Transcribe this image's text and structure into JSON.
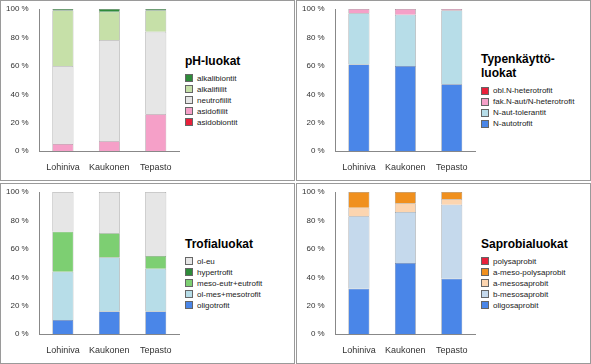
{
  "chart_data": [
    {
      "type": "bar",
      "title": "pH-luokat",
      "categories": [
        "Lohiniva",
        "Kaukonen",
        "Tepasto"
      ],
      "series": [
        {
          "name": "asidobiontit",
          "color": "#e8203a",
          "values": [
            0,
            0,
            0
          ]
        },
        {
          "name": "asidofiilit",
          "color": "#f5a0c8",
          "values": [
            5,
            7,
            26
          ]
        },
        {
          "name": "neutrofiilit",
          "color": "#e6e6e6",
          "values": [
            55,
            71,
            58
          ]
        },
        {
          "name": "alkalifiilit",
          "color": "#c6e0a8",
          "values": [
            39,
            20,
            15
          ]
        },
        {
          "name": "alkalibiontit",
          "color": "#2e8b3a",
          "values": [
            1,
            2,
            1
          ]
        }
      ],
      "ylim": [
        0,
        100
      ],
      "yticks": [
        {
          "value": 0,
          "label": "0 %"
        },
        {
          "value": 20,
          "label": "20 %"
        },
        {
          "value": 40,
          "label": "40 %"
        },
        {
          "value": 60,
          "label": "60 %"
        },
        {
          "value": 80,
          "label": "80 %"
        },
        {
          "value": 100,
          "label": "100 %"
        }
      ],
      "stacked": true,
      "grid": false,
      "legend": "right"
    },
    {
      "type": "bar",
      "title": "Typenkäyttö-luokat",
      "categories": [
        "Lohiniva",
        "Kaukonen",
        "Tepasto"
      ],
      "series": [
        {
          "name": "N-autotrofit",
          "color": "#4a86e8",
          "values": [
            61,
            60,
            47
          ]
        },
        {
          "name": "N-aut-tolerantit",
          "color": "#b7dde8",
          "values": [
            36,
            36,
            52
          ]
        },
        {
          "name": "fak.N-aut/N-heterotrofit",
          "color": "#f5a0c8",
          "values": [
            3,
            4,
            1
          ]
        },
        {
          "name": "obl.N-heterotrofit",
          "color": "#e8203a",
          "values": [
            0,
            0,
            0
          ]
        }
      ],
      "ylim": [
        0,
        100
      ],
      "yticks": [
        {
          "value": 0,
          "label": "0 %"
        },
        {
          "value": 20,
          "label": "20 %"
        },
        {
          "value": 40,
          "label": "40 %"
        },
        {
          "value": 60,
          "label": "60 %"
        },
        {
          "value": 80,
          "label": "80 %"
        },
        {
          "value": 100,
          "label": "100 %"
        }
      ],
      "stacked": true,
      "grid": false,
      "legend": "right"
    },
    {
      "type": "bar",
      "title": "Trofialuokat",
      "categories": [
        "Lohiniva",
        "Kaukonen",
        "Tepasto"
      ],
      "series": [
        {
          "name": "oligotrofit",
          "color": "#4a86e8",
          "values": [
            10,
            16,
            16
          ]
        },
        {
          "name": "ol-mes+mesotrofit",
          "color": "#b7dde8",
          "values": [
            34,
            38,
            30
          ]
        },
        {
          "name": "meso-eutr+eutrofit",
          "color": "#7dcf72",
          "values": [
            28,
            17,
            9
          ]
        },
        {
          "name": "hypertrofit",
          "color": "#2e8b3a",
          "values": [
            0,
            0,
            0
          ]
        },
        {
          "name": "ol-eu",
          "color": "#e6e6e6",
          "values": [
            28,
            29,
            45
          ]
        }
      ],
      "ylim": [
        0,
        100
      ],
      "yticks": [
        {
          "value": 0,
          "label": "0 %"
        },
        {
          "value": 20,
          "label": "20 %"
        },
        {
          "value": 40,
          "label": "40 %"
        },
        {
          "value": 60,
          "label": "60 %"
        },
        {
          "value": 80,
          "label": "80 %"
        },
        {
          "value": 100,
          "label": "100 %"
        }
      ],
      "stacked": true,
      "grid": false,
      "legend": "right"
    },
    {
      "type": "bar",
      "title": "Saprobialuokat",
      "categories": [
        "Lohiniva",
        "Kaukonen",
        "Tepasto"
      ],
      "series": [
        {
          "name": "oligosaprobit",
          "color": "#4a86e8",
          "values": [
            32,
            50,
            39
          ]
        },
        {
          "name": "b-mesosaprobit",
          "color": "#c5d9ec",
          "values": [
            51,
            36,
            52
          ]
        },
        {
          "name": "a-mesosaprobit",
          "color": "#fcd5b0",
          "values": [
            6,
            6,
            4
          ]
        },
        {
          "name": "a-meso-polysaprobit",
          "color": "#f0901e",
          "values": [
            11,
            8,
            5
          ]
        },
        {
          "name": "polysaprobit",
          "color": "#e8203a",
          "values": [
            0,
            0,
            0
          ]
        }
      ],
      "ylim": [
        0,
        100
      ],
      "yticks": [
        {
          "value": 0,
          "label": "0 %"
        },
        {
          "value": 20,
          "label": "20 %"
        },
        {
          "value": 40,
          "label": "40 %"
        },
        {
          "value": 60,
          "label": "60 %"
        },
        {
          "value": 80,
          "label": "80 %"
        },
        {
          "value": 100,
          "label": "100 %"
        }
      ],
      "stacked": true,
      "grid": false,
      "legend": "right"
    }
  ]
}
